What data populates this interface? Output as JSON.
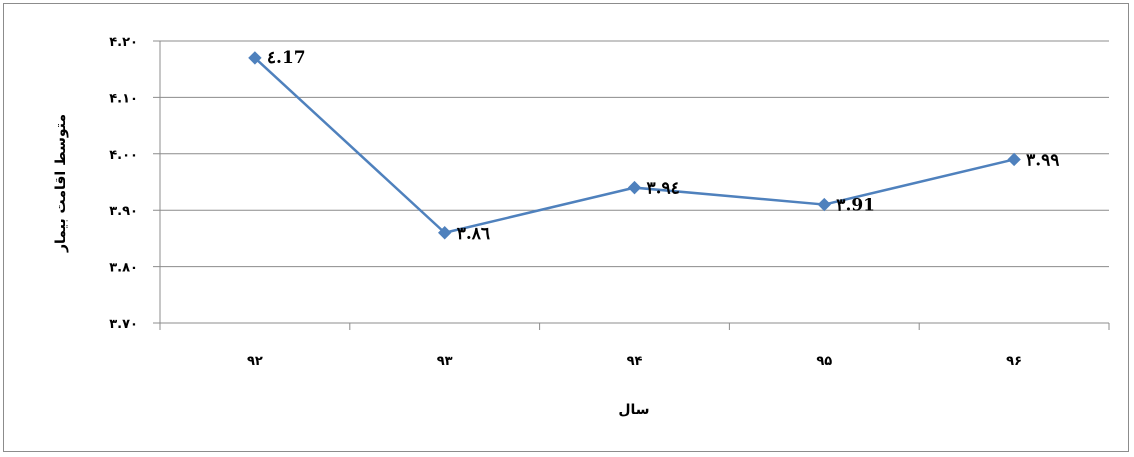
{
  "chart_data": {
    "type": "line",
    "categories": [
      "۹۲",
      "۹۳",
      "۹۴",
      "۹۵",
      "۹۶"
    ],
    "series": [
      {
        "values": [
          4.17,
          3.86,
          3.94,
          3.91,
          3.99
        ]
      }
    ],
    "data_labels": [
      "٤.17",
      "٣.٨٦",
      "٣.٩٤",
      "٣.91",
      "٣.٩٩"
    ],
    "y_ticks": [
      {
        "value": 4.2,
        "label": "۴.۲۰"
      },
      {
        "value": 4.1,
        "label": "۴.۱۰"
      },
      {
        "value": 4.0,
        "label": "۴.۰۰"
      },
      {
        "value": 3.9,
        "label": "۳.۹۰"
      },
      {
        "value": 3.8,
        "label": "۳.۸۰"
      },
      {
        "value": 3.7,
        "label": "۳.۷۰"
      }
    ],
    "ylim": [
      3.7,
      4.2
    ],
    "xlabel": "سال",
    "ylabel": "متوسط اقامت بیمار",
    "grid": true,
    "legend": "none",
    "colors": {
      "line": "#4f81bd",
      "marker": "#4f81bd",
      "grid": "#8c8c8c",
      "axis": "#8c8c8c"
    }
  }
}
